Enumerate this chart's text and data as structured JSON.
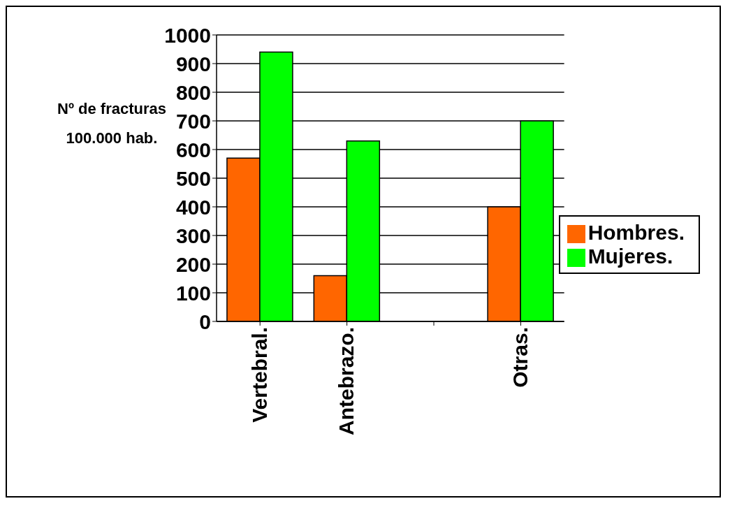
{
  "chart_data": {
    "type": "bar",
    "ylabel": "Nº de fracturas 100.000 hab.",
    "categories": [
      "Vertebral.",
      "Antebrazo.",
      null,
      "Otras."
    ],
    "series": [
      {
        "name": "Hombres.",
        "color": "#ff6600",
        "values": [
          570,
          160,
          null,
          400
        ]
      },
      {
        "name": "Mujeres.",
        "color": "#00ff00",
        "values": [
          940,
          630,
          null,
          700
        ]
      }
    ],
    "ylim": [
      0,
      1000
    ],
    "yticks": [
      0,
      100,
      200,
      300,
      400,
      500,
      600,
      700,
      800,
      900,
      1000
    ],
    "grid": "y",
    "legend": "right"
  }
}
